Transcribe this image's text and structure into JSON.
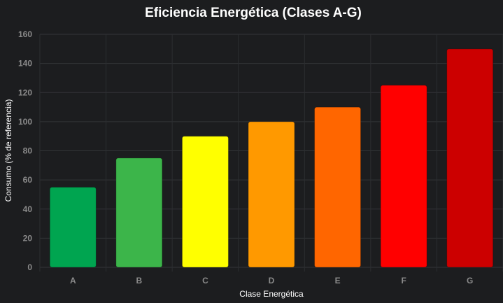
{
  "chart_data": {
    "type": "bar",
    "title": "Eficiencia Energética (Clases A-G)",
    "xlabel": "Clase Energética",
    "ylabel": "Consumo (% de referencia)",
    "categories": [
      "A",
      "B",
      "C",
      "D",
      "E",
      "F",
      "G"
    ],
    "values": [
      55,
      75,
      90,
      100,
      110,
      125,
      150
    ],
    "colors": [
      "#00a550",
      "#3cb54a",
      "#ffff00",
      "#ff9900",
      "#ff6600",
      "#ff0000",
      "#cc0000"
    ],
    "ylim": [
      0,
      160
    ],
    "yticks": [
      0,
      20,
      40,
      60,
      80,
      100,
      120,
      140,
      160
    ],
    "grid": true,
    "legend": "none"
  }
}
